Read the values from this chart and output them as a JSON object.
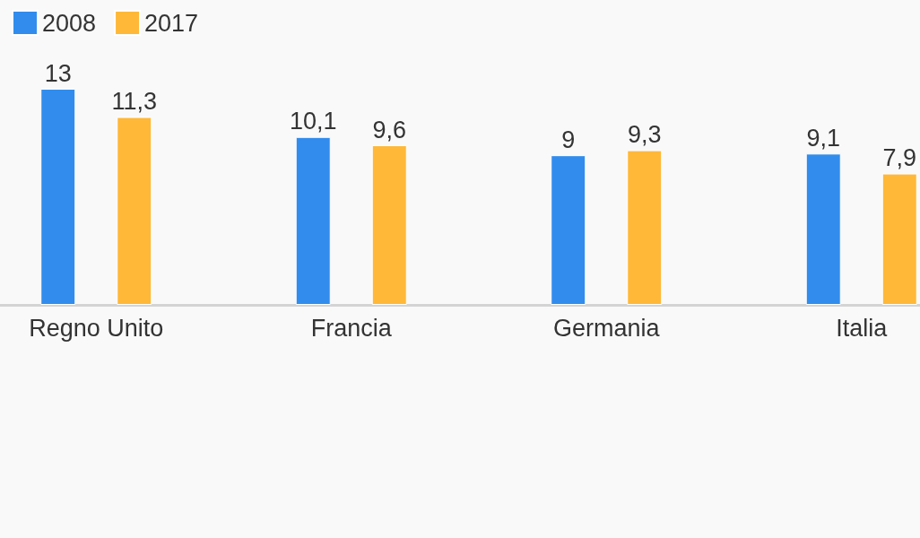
{
  "chart_data": {
    "type": "bar",
    "categories": [
      "Regno Unito",
      "Francia",
      "Germania",
      "Italia"
    ],
    "series": [
      {
        "name": "2008",
        "color": "#318ced",
        "values": [
          13,
          10.1,
          9,
          9.1
        ],
        "value_labels": [
          "13",
          "10,1",
          "9",
          "9,1"
        ]
      },
      {
        "name": "2017",
        "color": "#ffb838",
        "values": [
          11.3,
          9.6,
          9.3,
          7.9
        ],
        "value_labels": [
          "11,3",
          "9,6",
          "9,3",
          "7,9"
        ]
      }
    ],
    "grid": false,
    "legend": "top left"
  }
}
